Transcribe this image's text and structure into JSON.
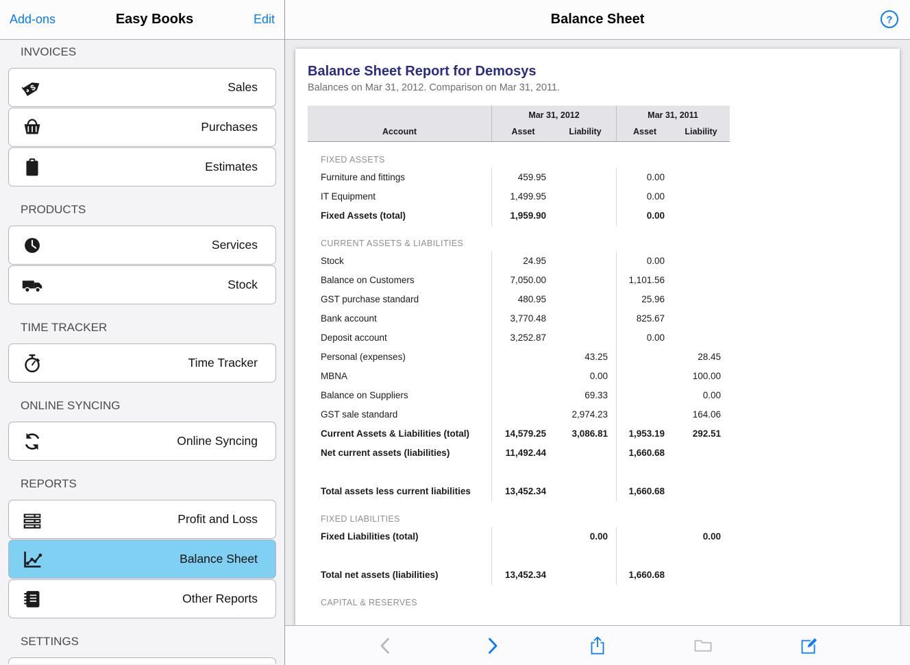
{
  "colors": {
    "accent": "#0a7aff",
    "selected_item": "#7fd0f3",
    "report_title": "#2c2c7d"
  },
  "sidebar": {
    "nav": {
      "left_button": "Add-ons",
      "title": "Easy Books",
      "right_button": "Edit"
    },
    "sections": [
      {
        "header": "INVOICES",
        "items": [
          {
            "label": "Sales",
            "icon": "price-tag-icon",
            "selected": false
          },
          {
            "label": "Purchases",
            "icon": "basket-icon",
            "selected": false
          },
          {
            "label": "Estimates",
            "icon": "clipboard-icon",
            "selected": false
          }
        ]
      },
      {
        "header": "PRODUCTS",
        "items": [
          {
            "label": "Services",
            "icon": "clock-icon",
            "selected": false
          },
          {
            "label": "Stock",
            "icon": "truck-icon",
            "selected": false
          }
        ]
      },
      {
        "header": "TIME TRACKER",
        "items": [
          {
            "label": "Time Tracker",
            "icon": "stopwatch-icon",
            "selected": false
          }
        ]
      },
      {
        "header": "ONLINE SYNCING",
        "items": [
          {
            "label": "Online Syncing",
            "icon": "sync-icon",
            "selected": false
          }
        ]
      },
      {
        "header": "REPORTS",
        "items": [
          {
            "label": "Profit and Loss",
            "icon": "newspaper-icon",
            "selected": false
          },
          {
            "label": "Balance Sheet",
            "icon": "chart-icon",
            "selected": true
          },
          {
            "label": "Other Reports",
            "icon": "notebook-icon",
            "selected": false
          }
        ]
      },
      {
        "header": "SETTINGS",
        "items": [],
        "partial_item": true
      }
    ]
  },
  "main": {
    "nav_title": "Balance Sheet",
    "help_label": "?",
    "report": {
      "title": "Balance Sheet Report for Demosys",
      "subtitle": "Balances on Mar 31, 2012. Comparison on Mar 31, 2011.",
      "table": {
        "group_headers": [
          "Mar 31, 2012",
          "Mar 31, 2011"
        ],
        "columns": [
          "Account",
          "Asset",
          "Liability",
          "Asset",
          "Liability"
        ],
        "rows": [
          {
            "type": "section",
            "label": "FIXED ASSETS"
          },
          {
            "type": "data",
            "label": "Furniture and fittings",
            "values": [
              "459.95",
              "",
              "0.00",
              ""
            ]
          },
          {
            "type": "data",
            "label": "IT Equipment",
            "values": [
              "1,499.95",
              "",
              "0.00",
              ""
            ]
          },
          {
            "type": "data",
            "bold": true,
            "label": "Fixed Assets (total)",
            "values": [
              "1,959.90",
              "",
              "0.00",
              ""
            ]
          },
          {
            "type": "section",
            "label": "CURRENT ASSETS & LIABILITIES"
          },
          {
            "type": "data",
            "label": "Stock",
            "values": [
              "24.95",
              "",
              "0.00",
              ""
            ]
          },
          {
            "type": "data",
            "label": "Balance on Customers",
            "values": [
              "7,050.00",
              "",
              "1,101.56",
              ""
            ]
          },
          {
            "type": "data",
            "label": "GST purchase standard",
            "values": [
              "480.95",
              "",
              "25.96",
              ""
            ]
          },
          {
            "type": "data",
            "label": "Bank account",
            "values": [
              "3,770.48",
              "",
              "825.67",
              ""
            ]
          },
          {
            "type": "data",
            "label": "Deposit account",
            "values": [
              "3,252.87",
              "",
              "0.00",
              ""
            ]
          },
          {
            "type": "data",
            "label": "Personal (expenses)",
            "values": [
              "",
              "43.25",
              "",
              "28.45"
            ]
          },
          {
            "type": "data",
            "label": "MBNA",
            "values": [
              "",
              "0.00",
              "",
              "100.00"
            ]
          },
          {
            "type": "data",
            "label": "Balance on Suppliers",
            "values": [
              "",
              "69.33",
              "",
              "0.00"
            ]
          },
          {
            "type": "data",
            "label": "GST sale standard",
            "values": [
              "",
              "2,974.23",
              "",
              "164.06"
            ]
          },
          {
            "type": "data",
            "bold": true,
            "label": "Current Assets & Liabilities (total)",
            "values": [
              "14,579.25",
              "3,086.81",
              "1,953.19",
              "292.51"
            ]
          },
          {
            "type": "data",
            "bold": true,
            "label": "Net current assets (liabilities)",
            "values": [
              "11,492.44",
              "",
              "1,660.68",
              ""
            ]
          },
          {
            "type": "spacer"
          },
          {
            "type": "data",
            "bold": true,
            "label": "Total assets less current liabilities",
            "values": [
              "13,452.34",
              "",
              "1,660.68",
              ""
            ]
          },
          {
            "type": "section",
            "label": "FIXED LIABILITIES"
          },
          {
            "type": "data",
            "bold": true,
            "label": "Fixed Liabilities (total)",
            "values": [
              "",
              "0.00",
              "",
              "0.00"
            ]
          },
          {
            "type": "spacer"
          },
          {
            "type": "data",
            "bold": true,
            "label": "Total net assets (liabilities)",
            "values": [
              "13,452.34",
              "",
              "1,660.68",
              ""
            ]
          },
          {
            "type": "section",
            "label": "CAPITAL & RESERVES"
          }
        ]
      }
    }
  },
  "toolbar": {
    "buttons": [
      {
        "icon": "back-chevron-icon",
        "enabled": false
      },
      {
        "icon": "forward-chevron-icon",
        "enabled": true
      },
      {
        "icon": "share-icon",
        "enabled": true
      },
      {
        "icon": "folder-icon",
        "enabled": false
      },
      {
        "icon": "compose-icon",
        "enabled": true
      }
    ]
  }
}
